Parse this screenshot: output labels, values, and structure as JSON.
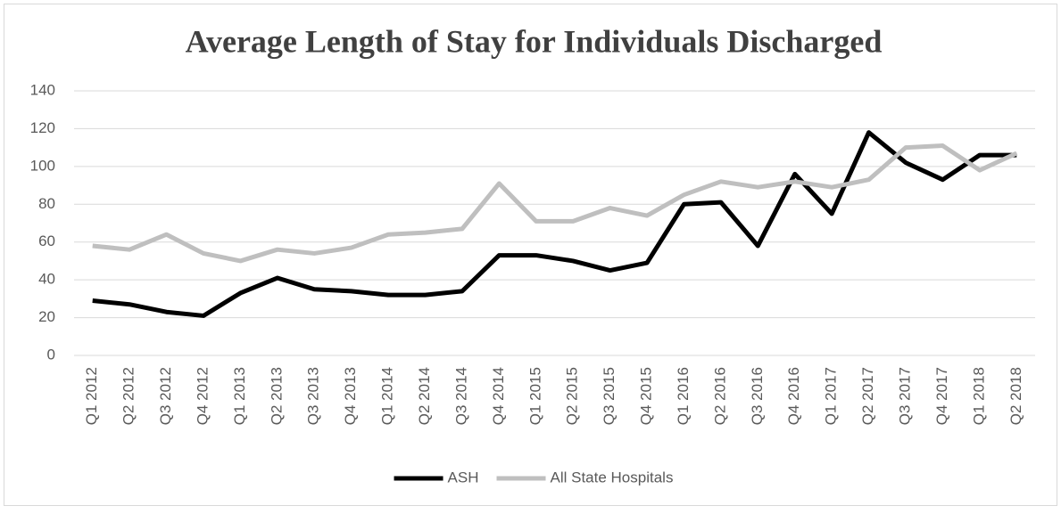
{
  "chart_data": {
    "type": "line",
    "title": "Average Length of Stay for Individuals Discharged",
    "categories": [
      "Q1 2012",
      "Q2 2012",
      "Q3 2012",
      "Q4 2012",
      "Q1 2013",
      "Q2 2013",
      "Q3 2013",
      "Q4 2013",
      "Q1 2014",
      "Q2 2014",
      "Q3 2014",
      "Q4 2014",
      "Q1 2015",
      "Q2 2015",
      "Q3 2015",
      "Q4 2015",
      "Q1 2016",
      "Q2 2016",
      "Q3 2016",
      "Q4 2016",
      "Q1 2017",
      "Q2 2017",
      "Q3 2017",
      "Q4 2017",
      "Q1 2018",
      "Q2 2018"
    ],
    "series": [
      {
        "name": "ASH",
        "color": "#000000",
        "values": [
          29,
          27,
          23,
          21,
          33,
          41,
          35,
          34,
          32,
          32,
          34,
          53,
          53,
          50,
          45,
          49,
          80,
          81,
          58,
          96,
          75,
          118,
          102,
          93,
          106,
          106
        ]
      },
      {
        "name": "All State Hospitals",
        "color": "#bfbfbf",
        "values": [
          58,
          56,
          64,
          54,
          50,
          56,
          54,
          57,
          64,
          65,
          67,
          91,
          71,
          71,
          78,
          74,
          85,
          92,
          89,
          92,
          89,
          93,
          110,
          111,
          98,
          107
        ]
      }
    ],
    "ylim": [
      0,
      140
    ],
    "yticks": [
      0,
      20,
      40,
      60,
      80,
      100,
      120,
      140
    ],
    "grid": true,
    "legend": "bottom"
  }
}
